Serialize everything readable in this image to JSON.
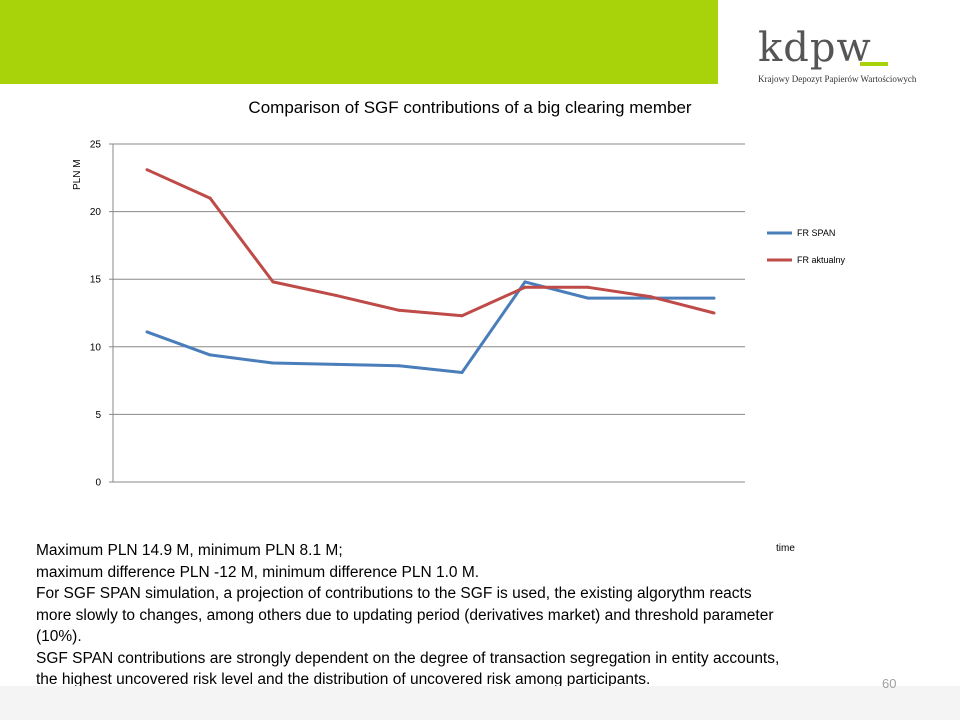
{
  "logo": {
    "word": "kdpw",
    "subtitle": "Krajowy Depozyt Papierów Wartościowych"
  },
  "chart_data": {
    "type": "line",
    "title": "Comparison of SGF contributions of a big clearing member",
    "xlabel": "time",
    "ylabel": "PLN M",
    "ylim": [
      0,
      25
    ],
    "yticks": [
      0,
      5,
      10,
      15,
      20,
      25
    ],
    "x": [
      1,
      2,
      3,
      4,
      5,
      6,
      7,
      8,
      9,
      10
    ],
    "grid": "horizontal",
    "legend": "right",
    "series": [
      {
        "name": "FR SPAN",
        "color": "#4a7ebb",
        "values": [
          11.1,
          9.4,
          8.8,
          8.7,
          8.6,
          8.1,
          14.8,
          13.6,
          13.6,
          13.6
        ]
      },
      {
        "name": "FR aktualny",
        "color": "#be4b48",
        "values": [
          23.1,
          21.0,
          14.8,
          13.8,
          12.7,
          12.3,
          14.4,
          14.4,
          13.7,
          12.5
        ]
      }
    ]
  },
  "notes": [
    "Maximum PLN 14.9 M,  minimum PLN 8.1 M;",
    "maximum difference PLN -12 M, minimum difference PLN 1.0 M.",
    "For SGF SPAN simulation, a projection of contributions to the SGF is used, the existing algorythm reacts",
    "more slowly to changes, among others due to updating period (derivatives market) and threshold parameter",
    "(10%).",
    "SGF SPAN contributions are strongly dependent on the degree of transaction segregation in entity accounts,",
    "the highest uncovered risk level and the distribution of uncovered risk among participants."
  ],
  "page_number": "60",
  "colors": {
    "brand_green": "#a8d20a",
    "grid": "#888888"
  }
}
